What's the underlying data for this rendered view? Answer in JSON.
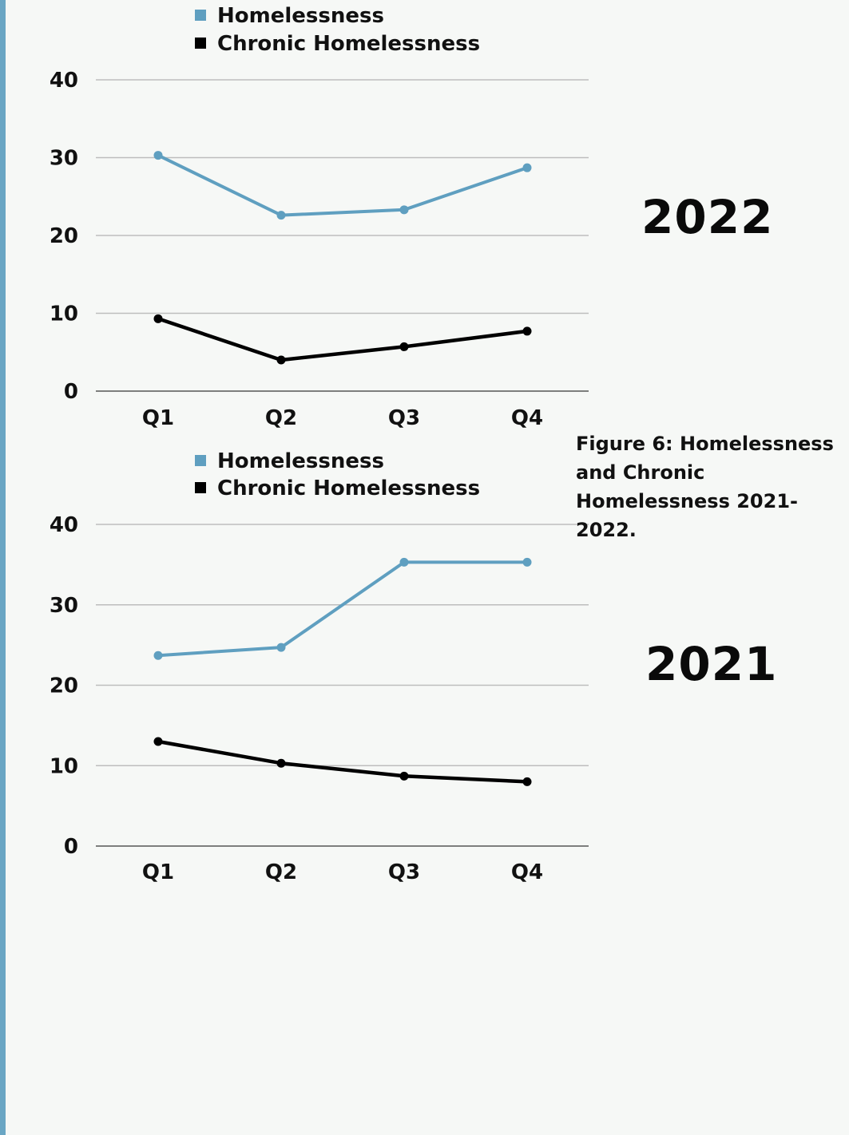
{
  "colors": {
    "accent_bar": "#6aa6c4",
    "homelessness": "#5f9fc0",
    "chronic": "#000000",
    "grid": "#bdbdbd",
    "axis": "#555555"
  },
  "figure_caption": "Figure 6: Homelessness and Chronic Homelessness 2021-2022.",
  "chart_data": [
    {
      "type": "line",
      "year_label": "2022",
      "categories": [
        "Q1",
        "Q2",
        "Q3",
        "Q4"
      ],
      "series": [
        {
          "name": "Homelessness",
          "values": [
            30.3,
            22.6,
            23.3,
            28.7
          ]
        },
        {
          "name": "Chronic Homelessness",
          "values": [
            9.3,
            4.0,
            5.7,
            7.7
          ]
        }
      ],
      "yticks": [
        "0",
        "10",
        "20",
        "30",
        "40"
      ],
      "ylim": [
        0,
        40
      ],
      "grid": true,
      "legend": "top-left"
    },
    {
      "type": "line",
      "year_label": "2021",
      "categories": [
        "Q1",
        "Q2",
        "Q3",
        "Q4"
      ],
      "series": [
        {
          "name": "Homelessness",
          "values": [
            23.7,
            24.7,
            35.3,
            35.3
          ]
        },
        {
          "name": "Chronic Homelessness",
          "values": [
            13.0,
            10.3,
            8.7,
            8.0
          ]
        }
      ],
      "yticks": [
        "0",
        "10",
        "20",
        "30",
        "40"
      ],
      "ylim": [
        0,
        40
      ],
      "grid": true,
      "legend": "top-left"
    }
  ]
}
